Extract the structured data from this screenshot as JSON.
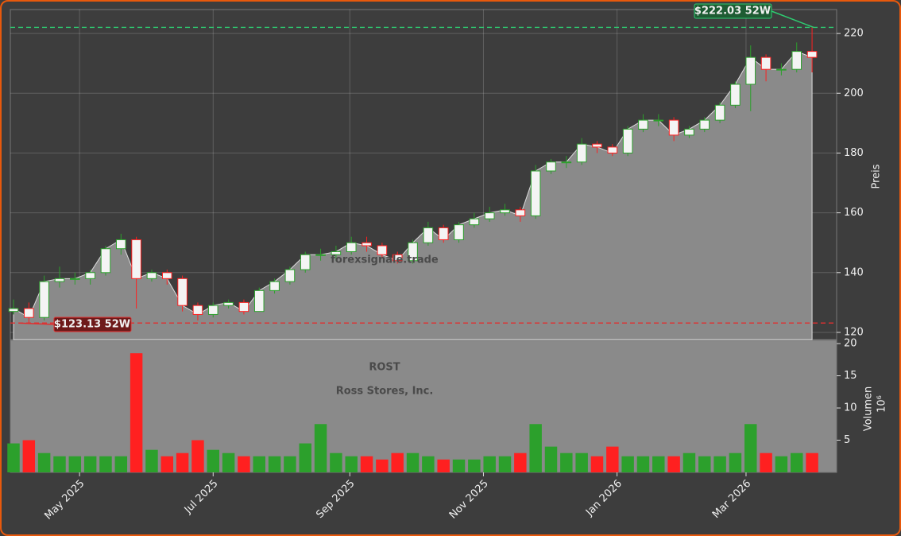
{
  "chart_data": [
    {
      "type": "candlestick",
      "watermark": "forexsignale.trade",
      "symbol": "ROST",
      "company": "Ross Stores, Inc.",
      "y_label": "Preis",
      "open": [
        127,
        128,
        125,
        137,
        138,
        138,
        140,
        148,
        151,
        138,
        140,
        138,
        129,
        126,
        129,
        130,
        127,
        134,
        137,
        141,
        146,
        146,
        147,
        150,
        149,
        146,
        144,
        150,
        155,
        151,
        156,
        158,
        160,
        161,
        159,
        174,
        177,
        177,
        183,
        182,
        180,
        188,
        191,
        191,
        186,
        188,
        191,
        196,
        203,
        212,
        208,
        208,
        214
      ],
      "high": [
        131,
        130,
        139,
        142,
        140,
        141,
        149,
        153,
        152,
        141,
        141,
        139,
        130,
        130,
        131,
        131,
        135,
        138,
        142,
        147,
        148,
        149,
        152,
        152,
        150,
        147,
        151,
        157,
        156,
        157,
        160,
        162,
        163,
        162,
        176,
        178,
        179,
        185,
        184,
        183,
        189,
        193,
        193,
        192,
        189,
        192,
        197,
        204,
        216,
        213,
        210,
        217,
        222.03
      ],
      "low": [
        126,
        123.13,
        124,
        135,
        136,
        136,
        139,
        146,
        128,
        137,
        136,
        127,
        124,
        125,
        128,
        126,
        127,
        133,
        136,
        140,
        144,
        144,
        146,
        147,
        145,
        143,
        143,
        149,
        150,
        150,
        155,
        157,
        159,
        157,
        158,
        173,
        175,
        176,
        180,
        179,
        179,
        187,
        189,
        184,
        185,
        187,
        190,
        195,
        194,
        204,
        206,
        207,
        207
      ],
      "close": [
        128,
        125,
        137,
        138,
        138,
        140,
        148,
        151,
        138,
        140,
        138,
        129,
        126,
        129,
        130,
        127,
        134,
        137,
        141,
        146,
        146,
        147,
        150,
        149,
        146,
        144,
        150,
        155,
        151,
        156,
        158,
        160,
        161,
        159,
        174,
        177,
        177,
        183,
        182,
        180,
        188,
        191,
        191,
        186,
        188,
        191,
        196,
        203,
        212,
        208,
        208,
        214,
        212
      ],
      "up_color": "#2ca02c",
      "down_color": "#ff2020",
      "area_color": "#8a8a8a",
      "xlim": [
        0,
        53.6
      ],
      "xticks": [
        {
          "value": 4.3,
          "label": "May 2025"
        },
        {
          "value": 13,
          "label": "Jul 2025"
        },
        {
          "value": 21.9,
          "label": "Sep 2025"
        },
        {
          "value": 30.6,
          "label": "Nov 2025"
        },
        {
          "value": 39.3,
          "label": "Jan 2026"
        },
        {
          "value": 47.7,
          "label": "Mar 2026"
        }
      ],
      "ylim": [
        117.6,
        228
      ],
      "yticks": [
        120,
        140,
        160,
        180,
        200,
        220
      ],
      "grid": true,
      "annotations": [
        {
          "text": "$222.03 52W",
          "value": 222.03,
          "color": "#2ecc71"
        },
        {
          "text": "$123.13 52W",
          "value": 123.13,
          "color": "#e03030"
        }
      ]
    },
    {
      "type": "bar",
      "y_label": "Volumen",
      "unit": "10⁶",
      "values": [
        4.5,
        5,
        3,
        2.5,
        2.5,
        2.5,
        2.5,
        2.5,
        18.5,
        3.5,
        2.5,
        3,
        5,
        3.5,
        3,
        2.5,
        2.5,
        2.5,
        2.5,
        4.5,
        7.5,
        3,
        2.5,
        2.5,
        2,
        3,
        3,
        2.5,
        2,
        2,
        2,
        2.5,
        2.5,
        3,
        7.5,
        4,
        3,
        3,
        2.5,
        4,
        2.5,
        2.5,
        2.5,
        2.5,
        3,
        2.5,
        2.5,
        3,
        7.5,
        3,
        2.5,
        3,
        3
      ],
      "ylim": [
        0,
        20.5
      ],
      "yticks": [
        5,
        10,
        15,
        20
      ]
    }
  ]
}
